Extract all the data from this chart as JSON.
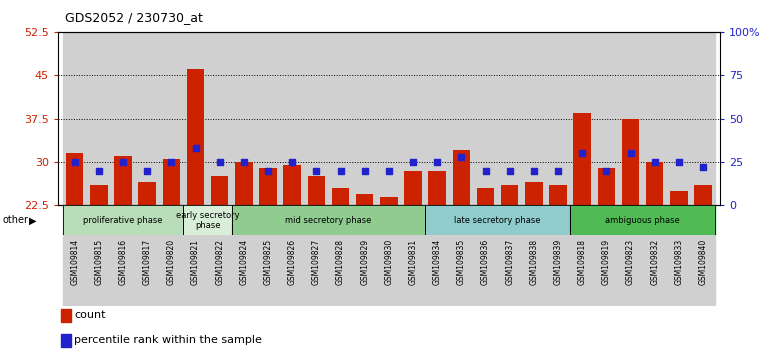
{
  "title": "GDS2052 / 230730_at",
  "samples": [
    "GSM109814",
    "GSM109815",
    "GSM109816",
    "GSM109817",
    "GSM109820",
    "GSM109821",
    "GSM109822",
    "GSM109824",
    "GSM109825",
    "GSM109826",
    "GSM109827",
    "GSM109828",
    "GSM109829",
    "GSM109830",
    "GSM109831",
    "GSM109834",
    "GSM109835",
    "GSM109836",
    "GSM109837",
    "GSM109838",
    "GSM109839",
    "GSM109818",
    "GSM109819",
    "GSM109823",
    "GSM109832",
    "GSM109833",
    "GSM109840"
  ],
  "counts": [
    31.5,
    26.0,
    31.0,
    26.5,
    30.5,
    46.0,
    27.5,
    30.0,
    29.0,
    29.5,
    27.5,
    25.5,
    24.5,
    24.0,
    28.5,
    28.5,
    32.0,
    25.5,
    26.0,
    26.5,
    26.0,
    38.5,
    29.0,
    37.5,
    30.0,
    25.0,
    26.0
  ],
  "percentiles": [
    25,
    20,
    25,
    20,
    25,
    33,
    25,
    25,
    20,
    25,
    20,
    20,
    20,
    20,
    25,
    25,
    28,
    20,
    20,
    20,
    20,
    30,
    20,
    30,
    25,
    25,
    22
  ],
  "ymin": 22.5,
  "ymax": 52.5,
  "yticks": [
    22.5,
    30.0,
    37.5,
    45.0,
    52.5
  ],
  "ytick_labels": [
    "22.5",
    "30",
    "37.5",
    "45",
    "52.5"
  ],
  "right_yticks": [
    0,
    25,
    50,
    75,
    100
  ],
  "right_ytick_labels": [
    "0",
    "25",
    "50",
    "75",
    "100%"
  ],
  "phases": [
    {
      "label": "proliferative phase",
      "start": 0,
      "end": 5,
      "color": "#b8ddb8"
    },
    {
      "label": "early secretory\nphase",
      "start": 5,
      "end": 7,
      "color": "#d8eed8"
    },
    {
      "label": "mid secretory phase",
      "start": 7,
      "end": 15,
      "color": "#90cc90"
    },
    {
      "label": "late secretory phase",
      "start": 15,
      "end": 21,
      "color": "#90cccc"
    },
    {
      "label": "ambiguous phase",
      "start": 21,
      "end": 27,
      "color": "#50bb55"
    }
  ],
  "bar_color": "#cc2200",
  "square_color": "#2222cc",
  "col_bg_even": "#d0d0d0",
  "col_bg_odd": "#c0c0c0"
}
